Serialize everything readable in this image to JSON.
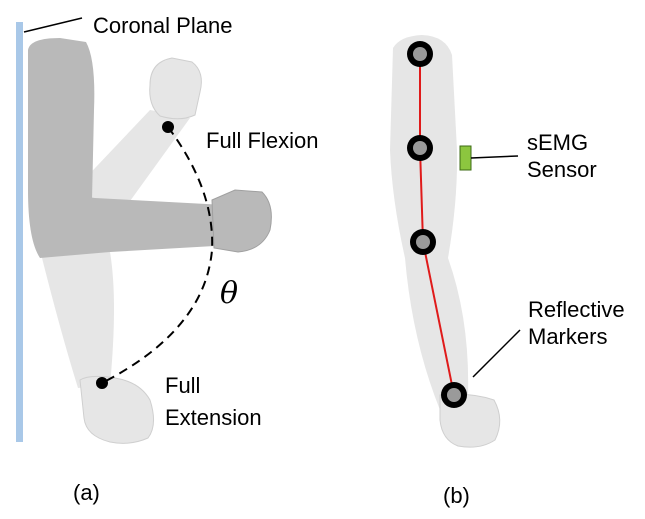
{
  "panel_a": {
    "caption": "(a)",
    "coronal_plane_label": "Coronal Plane",
    "full_flexion_label": "Full Flexion",
    "full_extension_label_line1": "Full",
    "full_extension_label_line2": "Extension",
    "angle_symbol": "θ"
  },
  "panel_b": {
    "caption": "(b)",
    "semg_label_line1": "sEMG",
    "semg_label_line2": "Sensor",
    "markers_label_line1": "Reflective",
    "markers_label_line2": "Markers"
  },
  "colors": {
    "coronal_plane": "#a9c8e8",
    "arm_light": "#e6e6e6",
    "arm_dark": "#b9b9b9",
    "marker_line": "#e01b1b",
    "sensor": "#8cc63f"
  }
}
